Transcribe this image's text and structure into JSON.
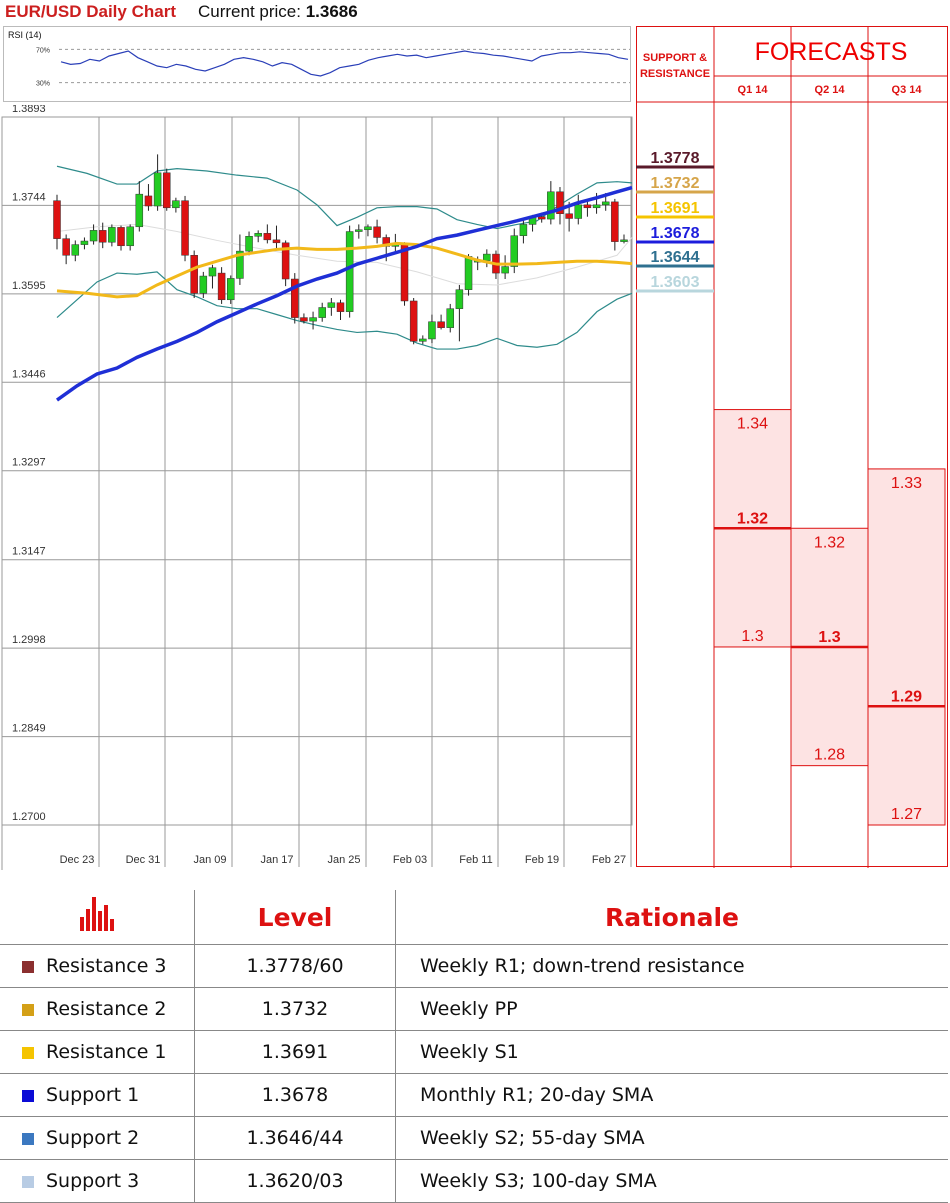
{
  "header": {
    "title": "EUR/USD Daily Chart",
    "price_label": "Current price:",
    "price_value": "1.3686"
  },
  "rsi": {
    "label": "RSI (14)",
    "levels": [
      "70%",
      "30%"
    ]
  },
  "chart_data": {
    "type": "candlestick",
    "y_ticks": [
      "1.3893",
      "1.3744",
      "1.3595",
      "1.3446",
      "1.3297",
      "1.3147",
      "1.2998",
      "1.2849",
      "1.2700"
    ],
    "ylim": [
      1.27,
      1.3893
    ],
    "x_ticks": [
      "Dec 23",
      "Dec 31",
      "Jan 09",
      "Jan 17",
      "Jan 25",
      "Feb 03",
      "Feb 11",
      "Feb 19",
      "Feb 27"
    ],
    "candles": [
      [
        1.3752,
        1.3762,
        1.367,
        1.3688
      ],
      [
        1.3688,
        1.3695,
        1.3645,
        1.366
      ],
      [
        1.366,
        1.3685,
        1.365,
        1.3678
      ],
      [
        1.3678,
        1.369,
        1.367,
        1.3684
      ],
      [
        1.3684,
        1.3712,
        1.3678,
        1.3702
      ],
      [
        1.3702,
        1.3715,
        1.3672,
        1.3682
      ],
      [
        1.3682,
        1.3712,
        1.3675,
        1.3707
      ],
      [
        1.3707,
        1.371,
        1.3668,
        1.3676
      ],
      [
        1.3676,
        1.3712,
        1.3668,
        1.3708
      ],
      [
        1.3708,
        1.3785,
        1.37,
        1.3763
      ],
      [
        1.376,
        1.378,
        1.3735,
        1.3743
      ],
      [
        1.3743,
        1.383,
        1.3735,
        1.3799
      ],
      [
        1.3799,
        1.3806,
        1.3735,
        1.374
      ],
      [
        1.374,
        1.3757,
        1.3732,
        1.3752
      ],
      [
        1.3752,
        1.376,
        1.365,
        1.366
      ],
      [
        1.366,
        1.3668,
        1.3588,
        1.3596
      ],
      [
        1.3596,
        1.3632,
        1.3588,
        1.3625
      ],
      [
        1.3625,
        1.3644,
        1.3604,
        1.3639
      ],
      [
        1.363,
        1.364,
        1.3578,
        1.3585
      ],
      [
        1.3585,
        1.3626,
        1.3578,
        1.3621
      ],
      [
        1.3621,
        1.3695,
        1.361,
        1.3667
      ],
      [
        1.3667,
        1.37,
        1.366,
        1.3692
      ],
      [
        1.3692,
        1.3702,
        1.3682,
        1.3697
      ],
      [
        1.3697,
        1.3712,
        1.368,
        1.3686
      ],
      [
        1.3686,
        1.371,
        1.3672,
        1.3681
      ],
      [
        1.3681,
        1.3685,
        1.3608,
        1.362
      ],
      [
        1.362,
        1.363,
        1.3545,
        1.3555
      ],
      [
        1.3555,
        1.3562,
        1.3545,
        1.3549
      ],
      [
        1.3549,
        1.3565,
        1.3535,
        1.3555
      ],
      [
        1.3555,
        1.358,
        1.3548,
        1.3572
      ],
      [
        1.3572,
        1.3588,
        1.3558,
        1.358
      ],
      [
        1.358,
        1.3585,
        1.3551,
        1.3565
      ],
      [
        1.3565,
        1.371,
        1.3555,
        1.37
      ],
      [
        1.37,
        1.3712,
        1.3688,
        1.3703
      ],
      [
        1.3703,
        1.3712,
        1.3692,
        1.3708
      ],
      [
        1.3708,
        1.372,
        1.368,
        1.369
      ],
      [
        1.369,
        1.3695,
        1.365,
        1.3675
      ],
      [
        1.3675,
        1.3696,
        1.3662,
        1.3678
      ],
      [
        1.3678,
        1.3682,
        1.3575,
        1.3583
      ],
      [
        1.3583,
        1.3588,
        1.351,
        1.3515
      ],
      [
        1.3515,
        1.3525,
        1.351,
        1.3519
      ],
      [
        1.3519,
        1.356,
        1.3512,
        1.3548
      ],
      [
        1.3548,
        1.356,
        1.3535,
        1.3538
      ],
      [
        1.3538,
        1.3578,
        1.353,
        1.357
      ],
      [
        1.357,
        1.361,
        1.3515,
        1.3602
      ],
      [
        1.3602,
        1.3662,
        1.3592,
        1.3658
      ],
      [
        1.365,
        1.3658,
        1.3635,
        1.3651
      ],
      [
        1.3651,
        1.367,
        1.364,
        1.3662
      ],
      [
        1.3662,
        1.3668,
        1.362,
        1.363
      ],
      [
        1.363,
        1.366,
        1.362,
        1.3641
      ],
      [
        1.3641,
        1.3705,
        1.363,
        1.3693
      ],
      [
        1.3693,
        1.372,
        1.368,
        1.3712
      ],
      [
        1.3712,
        1.3728,
        1.37,
        1.3725
      ],
      [
        1.3725,
        1.3732,
        1.3715,
        1.3721
      ],
      [
        1.3721,
        1.3785,
        1.3712,
        1.3767
      ],
      [
        1.3767,
        1.3775,
        1.3712,
        1.373
      ],
      [
        1.373,
        1.375,
        1.37,
        1.3722
      ],
      [
        1.3722,
        1.3762,
        1.3712,
        1.3745
      ],
      [
        1.3745,
        1.3755,
        1.3725,
        1.374
      ],
      [
        1.374,
        1.3765,
        1.373,
        1.3745
      ],
      [
        1.3745,
        1.3765,
        1.3735,
        1.375
      ],
      [
        1.375,
        1.3755,
        1.3668,
        1.3683
      ],
      [
        1.3683,
        1.3695,
        1.368,
        1.3686
      ]
    ],
    "sma_200": [
      [
        0,
        1.3416
      ],
      [
        20,
        1.344
      ],
      [
        40,
        1.346
      ],
      [
        60,
        1.347
      ],
      [
        80,
        1.3488
      ],
      [
        100,
        1.3502
      ],
      [
        120,
        1.3515
      ],
      [
        140,
        1.353
      ],
      [
        160,
        1.3548
      ],
      [
        180,
        1.3563
      ],
      [
        200,
        1.3578
      ],
      [
        220,
        1.3592
      ],
      [
        240,
        1.3608
      ],
      [
        260,
        1.362
      ],
      [
        280,
        1.363
      ],
      [
        300,
        1.3645
      ],
      [
        320,
        1.3655
      ],
      [
        340,
        1.3665
      ],
      [
        360,
        1.3675
      ],
      [
        380,
        1.3688
      ],
      [
        400,
        1.3694
      ],
      [
        420,
        1.3702
      ],
      [
        440,
        1.371
      ],
      [
        460,
        1.3718
      ],
      [
        480,
        1.3727
      ],
      [
        500,
        1.3736
      ],
      [
        520,
        1.3748
      ],
      [
        540,
        1.3757
      ],
      [
        560,
        1.3767
      ],
      [
        575,
        1.3774
      ]
    ],
    "sma_55": [
      [
        0,
        1.36
      ],
      [
        30,
        1.3596
      ],
      [
        60,
        1.359
      ],
      [
        80,
        1.3592
      ],
      [
        100,
        1.361
      ],
      [
        120,
        1.3625
      ],
      [
        140,
        1.364
      ],
      [
        160,
        1.365
      ],
      [
        180,
        1.366
      ],
      [
        200,
        1.3665
      ],
      [
        220,
        1.367
      ],
      [
        240,
        1.3672
      ],
      [
        260,
        1.367
      ],
      [
        280,
        1.367
      ],
      [
        300,
        1.3672
      ],
      [
        320,
        1.3675
      ],
      [
        340,
        1.368
      ],
      [
        360,
        1.3678
      ],
      [
        380,
        1.3672
      ],
      [
        400,
        1.3662
      ],
      [
        420,
        1.3652
      ],
      [
        440,
        1.3645
      ],
      [
        460,
        1.3645
      ],
      [
        480,
        1.3646
      ],
      [
        500,
        1.3648
      ],
      [
        520,
        1.365
      ],
      [
        540,
        1.365
      ],
      [
        560,
        1.3648
      ],
      [
        575,
        1.3646
      ]
    ],
    "bb_upper": [
      [
        0,
        1.381
      ],
      [
        30,
        1.3798
      ],
      [
        60,
        1.378
      ],
      [
        80,
        1.378
      ],
      [
        100,
        1.3802
      ],
      [
        120,
        1.3806
      ],
      [
        150,
        1.3802
      ],
      [
        180,
        1.3795
      ],
      [
        210,
        1.379
      ],
      [
        240,
        1.377
      ],
      [
        260,
        1.3745
      ],
      [
        280,
        1.371
      ],
      [
        300,
        1.3724
      ],
      [
        320,
        1.374
      ],
      [
        340,
        1.3742
      ],
      [
        360,
        1.3742
      ],
      [
        380,
        1.3738
      ],
      [
        400,
        1.372
      ],
      [
        420,
        1.3712
      ],
      [
        440,
        1.3705
      ],
      [
        460,
        1.3712
      ],
      [
        480,
        1.3718
      ],
      [
        500,
        1.3742
      ],
      [
        520,
        1.3763
      ],
      [
        540,
        1.3782
      ],
      [
        560,
        1.3784
      ],
      [
        575,
        1.3782
      ]
    ],
    "bb_lower": [
      [
        0,
        1.3555
      ],
      [
        20,
        1.3585
      ],
      [
        40,
        1.3615
      ],
      [
        60,
        1.363
      ],
      [
        80,
        1.3628
      ],
      [
        100,
        1.3632
      ],
      [
        120,
        1.3602
      ],
      [
        140,
        1.359
      ],
      [
        160,
        1.3575
      ],
      [
        180,
        1.357
      ],
      [
        200,
        1.357
      ],
      [
        220,
        1.356
      ],
      [
        240,
        1.355
      ],
      [
        260,
        1.3542
      ],
      [
        280,
        1.3535
      ],
      [
        300,
        1.353
      ],
      [
        320,
        1.3532
      ],
      [
        340,
        1.3527
      ],
      [
        360,
        1.3512
      ],
      [
        380,
        1.3502
      ],
      [
        400,
        1.3502
      ],
      [
        420,
        1.3508
      ],
      [
        440,
        1.352
      ],
      [
        460,
        1.3508
      ],
      [
        480,
        1.3505
      ],
      [
        500,
        1.351
      ],
      [
        520,
        1.353
      ],
      [
        540,
        1.3565
      ],
      [
        560,
        1.3586
      ],
      [
        575,
        1.3596
      ]
    ],
    "bb_mid": [
      [
        0,
        1.37
      ],
      [
        40,
        1.3708
      ],
      [
        80,
        1.3712
      ],
      [
        120,
        1.37
      ],
      [
        160,
        1.3685
      ],
      [
        200,
        1.3672
      ],
      [
        240,
        1.366
      ],
      [
        280,
        1.365
      ],
      [
        320,
        1.3648
      ],
      [
        360,
        1.3632
      ],
      [
        400,
        1.3612
      ],
      [
        440,
        1.361
      ],
      [
        480,
        1.3622
      ],
      [
        520,
        1.364
      ],
      [
        560,
        1.366
      ],
      [
        575,
        1.369
      ]
    ],
    "rsi_values": [
      55,
      52,
      53,
      58,
      56,
      62,
      65,
      68,
      60,
      55,
      50,
      48,
      52,
      50,
      46,
      44,
      48,
      52,
      58,
      60,
      58,
      55,
      50,
      54,
      52,
      46,
      40,
      38,
      42,
      48,
      50,
      52,
      57,
      60,
      62,
      64,
      62,
      63,
      60,
      62,
      64,
      66,
      68,
      66,
      65,
      63,
      62,
      60,
      58,
      56,
      62,
      64,
      66,
      66,
      67,
      66,
      65,
      64,
      60,
      58
    ]
  },
  "support_resistance": {
    "header": [
      "SUPPORT &",
      "RESISTANCE"
    ],
    "levels": [
      {
        "label": "1.3778",
        "value": 1.3778,
        "color": "#5a1a2a"
      },
      {
        "label": "1.3732",
        "value": 1.3732,
        "color": "#d6a54a"
      },
      {
        "label": "1.3691",
        "value": 1.3691,
        "color": "#f5c400"
      },
      {
        "label": "1.3678",
        "value": 1.3678,
        "color": "#1d1ddc"
      },
      {
        "label": "1.3644",
        "value": 1.3644,
        "color": "#2f7090"
      },
      {
        "label": "1.3603",
        "value": 1.3603,
        "color": "#b8d6dd"
      }
    ]
  },
  "forecasts": {
    "title": "FORECASTS",
    "columns": [
      "Q1 14",
      "Q2 14",
      "Q3 14"
    ],
    "ranges": [
      {
        "high": "1.34",
        "mid": "1.32",
        "low": "1.3",
        "high_v": 1.34,
        "mid_v": 1.32,
        "low_v": 1.3
      },
      {
        "high": "1.32",
        "mid": "1.3",
        "low": "1.28",
        "high_v": 1.32,
        "mid_v": 1.3,
        "low_v": 1.28
      },
      {
        "high": "1.33",
        "mid": "1.29",
        "low": "1.27",
        "high_v": 1.33,
        "mid_v": 1.29,
        "low_v": 1.27
      }
    ]
  },
  "levels_table": {
    "headers": {
      "level": "Level",
      "rationale": "Rationale"
    },
    "rows": [
      {
        "name": "Resistance 3",
        "level": "1.3778/60",
        "rationale": "Weekly R1; down-trend resistance",
        "color": "#8b2f2f"
      },
      {
        "name": "Resistance 2",
        "level": "1.3732",
        "rationale": "Weekly PP",
        "color": "#d4a017"
      },
      {
        "name": "Resistance 1",
        "level": "1.3691",
        "rationale": "Weekly S1",
        "color": "#f5c400"
      },
      {
        "name": "Support 1",
        "level": "1.3678",
        "rationale": "Monthly R1; 20-day SMA",
        "color": "#0b0bd6"
      },
      {
        "name": "Support 2",
        "level": "1.3646/44",
        "rationale": "Weekly S2; 55-day SMA",
        "color": "#3b78c0"
      },
      {
        "name": "Support 3",
        "level": "1.3620/03",
        "rationale": "Weekly S3; 100-day SMA",
        "color": "#b8cce4"
      }
    ]
  },
  "colors": {
    "up": "#22cc22",
    "down": "#dd1111",
    "accent": "#d11"
  }
}
